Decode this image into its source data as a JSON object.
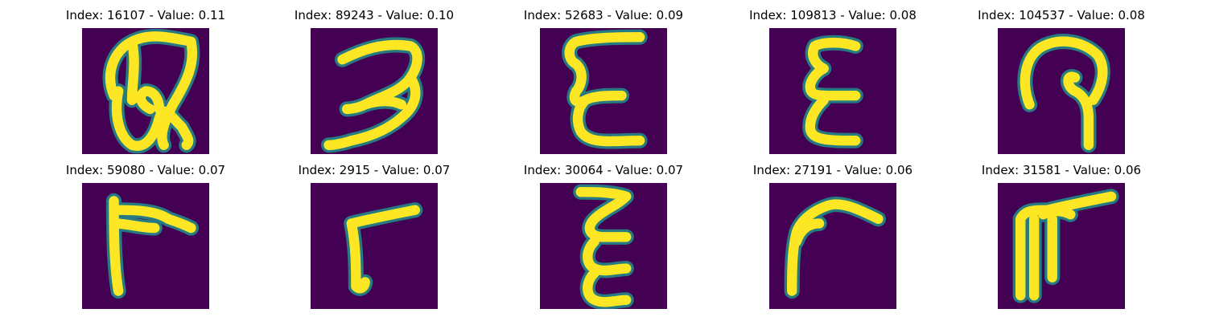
{
  "colors": {
    "background": "#440154",
    "stroke_core": "#fde725",
    "stroke_edge": "#21918c"
  },
  "panels": [
    {
      "title": "Index: 16107 - Value: 0.11",
      "glyph": "ampersand-like-glyph"
    },
    {
      "title": "Index: 89243 - Value: 0.10",
      "glyph": "three-like-glyph"
    },
    {
      "title": "Index: 52683 - Value: 0.09",
      "glyph": "epsilon-like-glyph"
    },
    {
      "title": "Index: 109813 - Value: 0.08",
      "glyph": "epsilon-like-glyph"
    },
    {
      "title": "Index: 104537 - Value: 0.08",
      "glyph": "looped-glyph"
    },
    {
      "title": "Index: 59080 - Value: 0.07",
      "glyph": "r-like-glyph"
    },
    {
      "title": "Index: 2915 - Value: 0.07",
      "glyph": "r-like-glyph"
    },
    {
      "title": "Index: 30064 - Value: 0.07",
      "glyph": "epsilon-like-glyph"
    },
    {
      "title": "Index: 27191 - Value: 0.06",
      "glyph": "r-like-glyph"
    },
    {
      "title": "Index: 31581 - Value: 0.06",
      "glyph": "r-like-glyph"
    }
  ]
}
